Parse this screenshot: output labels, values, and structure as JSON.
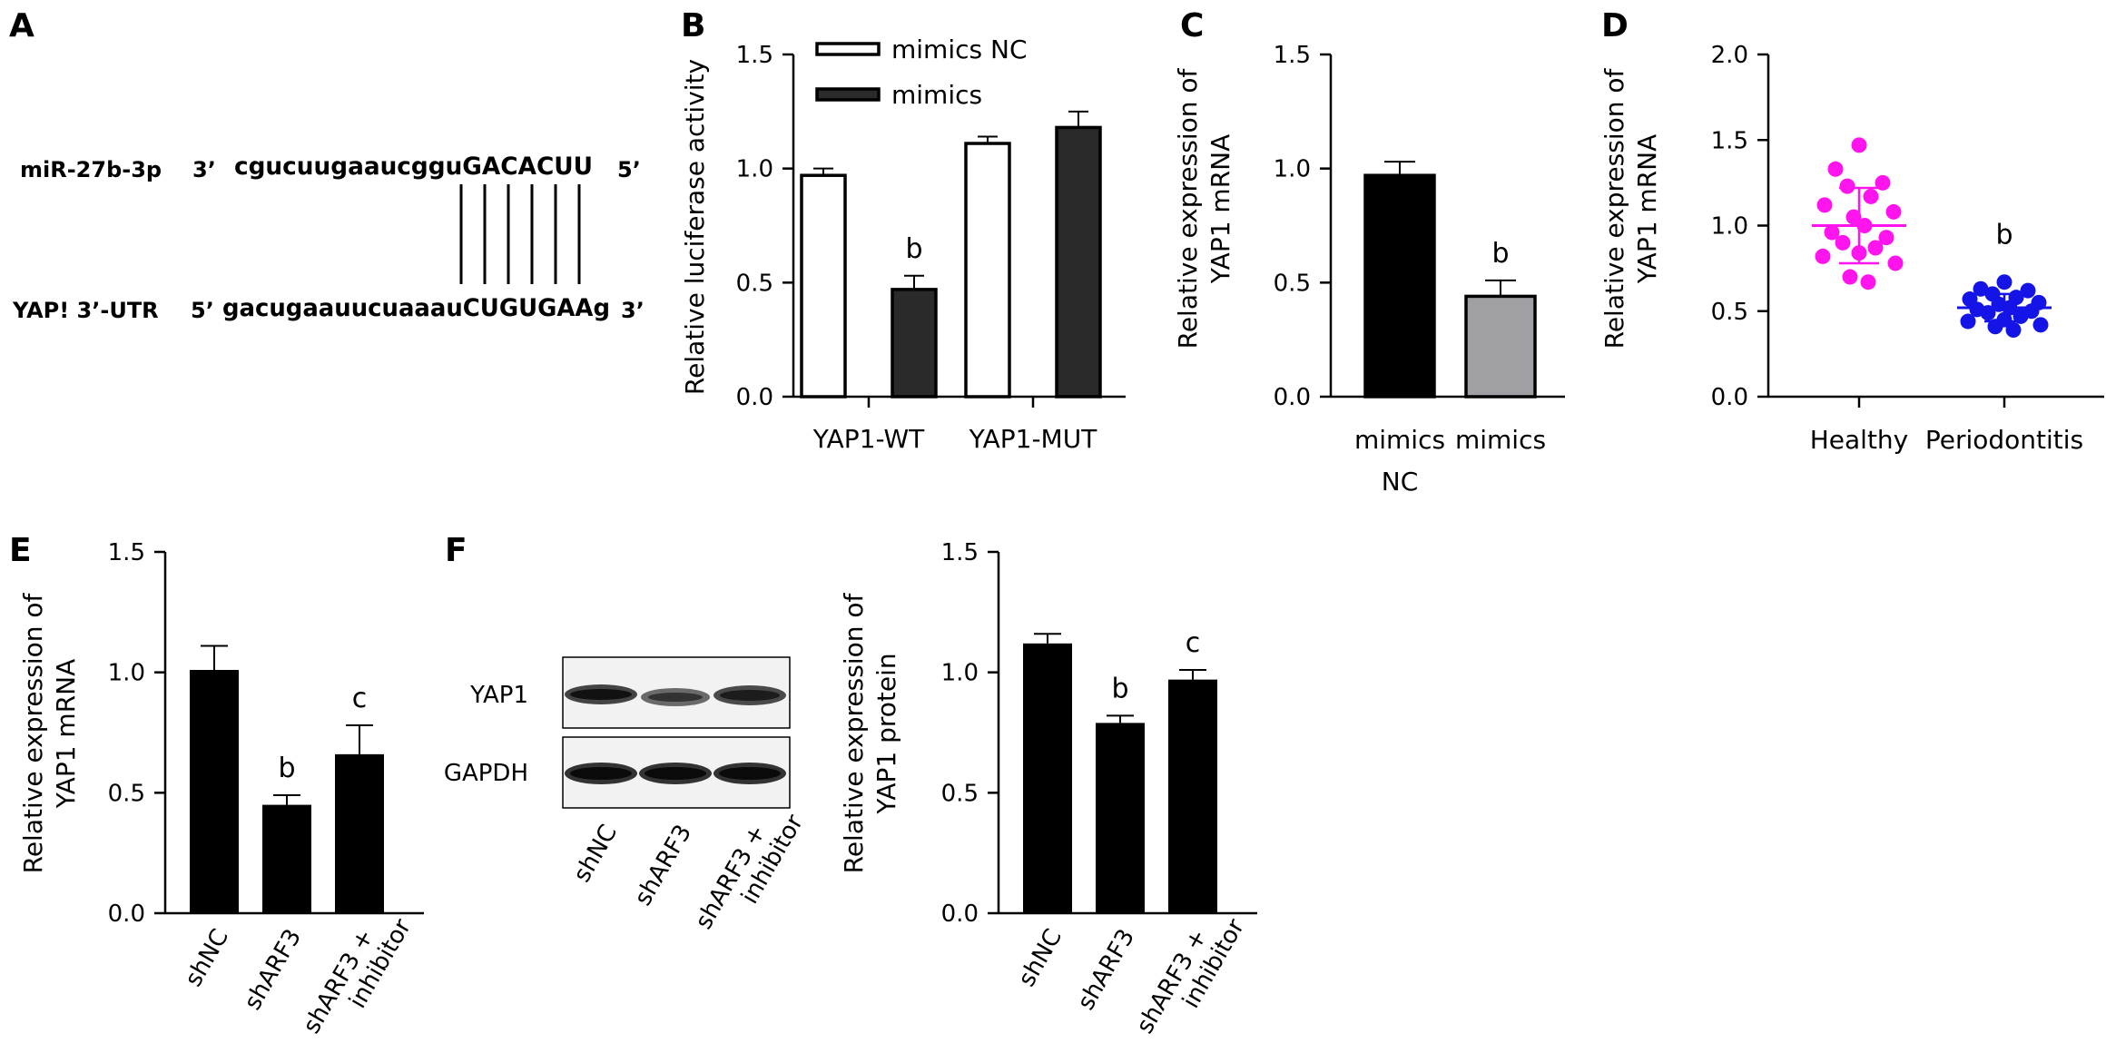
{
  "panel_labels": {
    "a": "A",
    "b": "B",
    "c": "C",
    "d": "D",
    "e": "E",
    "f": "F"
  },
  "panel_a": {
    "mirna_name": "miR-27b-3p",
    "mirna_end5": "3’",
    "mirna_seq": "cgucuugaaucgguGACACUU",
    "mirna_end3": "5’",
    "target_name": "YAP! 3’-UTR",
    "target_end5": "5’",
    "target_seq": "gacugaauucuaaauCUGUGAAg",
    "target_end3": "3’",
    "pair_count": 6
  },
  "blot": {
    "bands": [
      "YAP1",
      "GAPDH"
    ],
    "lanes": [
      "shNC",
      "shARF3",
      "shARF3 + inhibitor"
    ]
  },
  "colors": {
    "axis": "#000000",
    "black": "#000000",
    "white": "#ffffff",
    "dark_bar": "#2a2a2a",
    "gray_bar": "#a0a0a4",
    "magenta": "#ff14ee",
    "blue": "#1414e6"
  },
  "chart_data": [
    {
      "id": "B",
      "type": "bar",
      "ylabel": "Relative luciferase activity",
      "ylim": [
        0,
        1.5
      ],
      "yticks": [
        "0.0",
        "0.5",
        "1.0",
        "1.5"
      ],
      "groups": [
        "YAP1-WT",
        "YAP1-MUT"
      ],
      "legend_position": "top",
      "series": [
        {
          "name": "mimics NC",
          "values": [
            0.97,
            1.11
          ],
          "errors": [
            0.03,
            0.03
          ],
          "fill": "white"
        },
        {
          "name": "mimics",
          "values": [
            0.47,
            1.18
          ],
          "errors": [
            0.06,
            0.07
          ],
          "fill": "dark"
        }
      ],
      "annotations": [
        {
          "group": 0,
          "series": 1,
          "text": "b"
        }
      ]
    },
    {
      "id": "C",
      "type": "bar",
      "ylabel": "Relative expression of YAP1 mRNA",
      "ylim": [
        0,
        1.5
      ],
      "yticks": [
        "0.0",
        "0.5",
        "1.0",
        "1.5"
      ],
      "categories": [
        "mimics NC",
        "mimics"
      ],
      "values": [
        0.97,
        0.44
      ],
      "errors": [
        0.06,
        0.07
      ],
      "fills": [
        "black",
        "gray"
      ],
      "annotations": [
        "",
        "b"
      ]
    },
    {
      "id": "D",
      "type": "scatter",
      "ylabel": "Relative expression of YAP1 mRNA",
      "ylim": [
        0,
        2.0
      ],
      "yticks": [
        "0.0",
        "0.5",
        "1.0",
        "1.5",
        "2.0"
      ],
      "categories": [
        "Healthy",
        "Periodontitis"
      ],
      "series": [
        {
          "category": "Healthy",
          "mean": 1.0,
          "sd": 0.22,
          "values": [
            1.47,
            1.33,
            1.25,
            1.23,
            1.17,
            1.12,
            1.08,
            1.05,
            1.0,
            0.96,
            0.93,
            0.9,
            0.87,
            0.84,
            0.82,
            0.78,
            0.7,
            0.67
          ]
        },
        {
          "category": "Periodontitis",
          "mean": 0.52,
          "sd": 0.08,
          "values": [
            0.67,
            0.63,
            0.62,
            0.6,
            0.58,
            0.57,
            0.55,
            0.54,
            0.52,
            0.51,
            0.5,
            0.49,
            0.47,
            0.45,
            0.44,
            0.42,
            0.41,
            0.39
          ]
        }
      ],
      "annotations": [
        "",
        "b"
      ]
    },
    {
      "id": "E",
      "type": "bar",
      "ylabel": "Relative expression of YAP1 mRNA",
      "ylim": [
        0,
        1.5
      ],
      "yticks": [
        "0.0",
        "0.5",
        "1.0",
        "1.5"
      ],
      "categories": [
        "shNC",
        "shARF3",
        "shARF3 + inhibitor"
      ],
      "values": [
        1.01,
        0.45,
        0.66
      ],
      "errors": [
        0.1,
        0.04,
        0.12
      ],
      "annotations": [
        "",
        "b",
        "c"
      ]
    },
    {
      "id": "F",
      "type": "bar",
      "ylabel": "Relative expression of YAP1 protein",
      "ylim": [
        0,
        1.5
      ],
      "yticks": [
        "0.0",
        "0.5",
        "1.0",
        "1.5"
      ],
      "categories": [
        "shNC",
        "shARF3",
        "shARF3 + inhibitor"
      ],
      "values": [
        1.12,
        0.79,
        0.97
      ],
      "errors": [
        0.04,
        0.03,
        0.04
      ],
      "annotations": [
        "",
        "b",
        "c"
      ]
    }
  ]
}
